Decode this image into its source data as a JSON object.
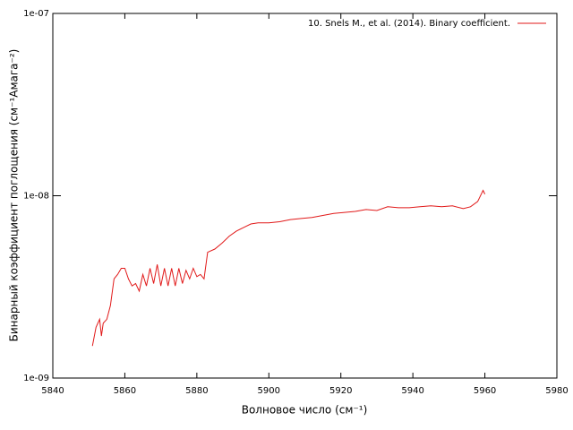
{
  "chart_data": {
    "type": "line",
    "xlabel": "Волновое число (см⁻¹)",
    "ylabel": "Бинарный коэффициент поглощения (см⁻¹Амага⁻²)",
    "x": [
      5851,
      5852,
      5853,
      5853.5,
      5854,
      5855,
      5856,
      5857,
      5858,
      5859,
      5860,
      5861,
      5862,
      5863,
      5864,
      5865,
      5866,
      5867,
      5868,
      5869,
      5870,
      5871,
      5872,
      5873,
      5874,
      5875,
      5876,
      5877,
      5878,
      5879,
      5880,
      5881,
      5882,
      5883,
      5885,
      5887,
      5889,
      5891,
      5893,
      5895,
      5897,
      5900,
      5903,
      5906,
      5909,
      5912,
      5915,
      5918,
      5921,
      5924,
      5927,
      5930,
      5933,
      5936,
      5939,
      5942,
      5945,
      5948,
      5951,
      5954,
      5956,
      5958,
      5959.5,
      5960
    ],
    "series": [
      {
        "name": "10. Snels M., et al. (2014). Binary coefficient.",
        "color": "#e11919",
        "values": [
          1.5e-09,
          1.9e-09,
          2.1e-09,
          1.7e-09,
          2e-09,
          2.1e-09,
          2.5e-09,
          3.5e-09,
          3.7e-09,
          4e-09,
          4e-09,
          3.5e-09,
          3.2e-09,
          3.3e-09,
          3e-09,
          3.7e-09,
          3.2e-09,
          4e-09,
          3.3e-09,
          4.2e-09,
          3.2e-09,
          4e-09,
          3.2e-09,
          4e-09,
          3.2e-09,
          4e-09,
          3.3e-09,
          3.9e-09,
          3.5e-09,
          4e-09,
          3.6e-09,
          3.7e-09,
          3.5e-09,
          4.9e-09,
          5.1e-09,
          5.5e-09,
          6e-09,
          6.4e-09,
          6.7e-09,
          7e-09,
          7.1e-09,
          7.1e-09,
          7.2e-09,
          7.4e-09,
          7.5e-09,
          7.6e-09,
          7.8e-09,
          8e-09,
          8.1e-09,
          8.2e-09,
          8.4e-09,
          8.3e-09,
          8.7e-09,
          8.6e-09,
          8.6e-09,
          8.7e-09,
          8.8e-09,
          8.7e-09,
          8.8e-09,
          8.5e-09,
          8.7e-09,
          9.3e-09,
          1.07e-08,
          1.02e-08
        ]
      }
    ],
    "xlim": [
      5840,
      5980
    ],
    "xticks": [
      5840,
      5860,
      5880,
      5900,
      5920,
      5940,
      5960,
      5980
    ],
    "ylim": [
      1e-09,
      1e-07
    ],
    "ylog": true,
    "yticks": [
      {
        "value": 1e-09,
        "label": "1e-09"
      },
      {
        "value": 1e-08,
        "label": "1e-08"
      },
      {
        "value": 1e-07,
        "label": "1e-07"
      }
    ],
    "legend": "top-right",
    "grid": false
  }
}
